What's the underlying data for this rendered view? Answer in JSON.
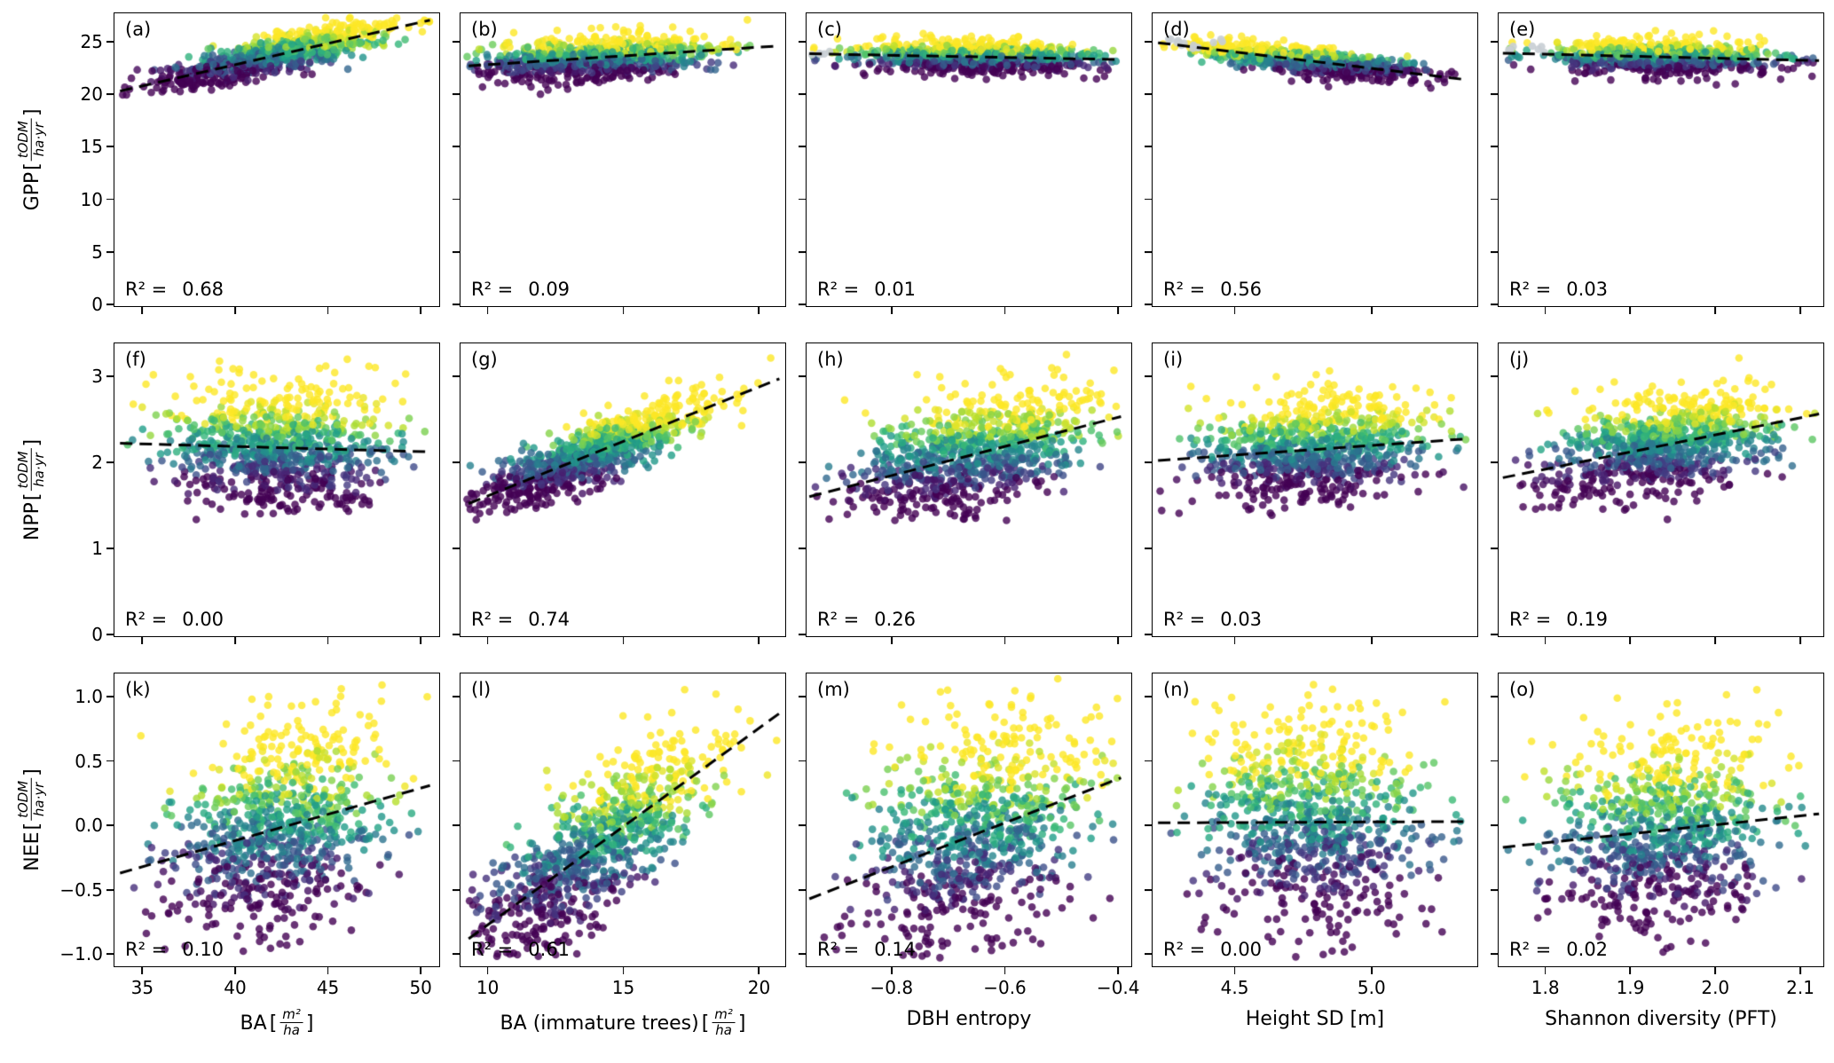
{
  "chart_data": {
    "type": "scatter",
    "layout": "3 rows x 5 columns, shared x per column and shared y per row",
    "colormap": "viridis",
    "point_color_meaning": "viridis-colored response value (low = purple, high = yellow)",
    "points_per_panel": 850,
    "gridlines": false,
    "legend": "none",
    "r2_prefix": "R² =",
    "bracket_open": "[",
    "bracket_close": "]",
    "rows": [
      {
        "name": "GPP",
        "unit_num": "tODM",
        "unit_den": "ha·yr",
        "ylim": [
          0,
          27.7
        ],
        "ytick_vals": [
          0,
          5,
          10,
          15,
          20,
          25
        ],
        "yticks": [
          "0",
          "5",
          "10",
          "15",
          "20",
          "25"
        ],
        "y_clip": [
          19.7,
          27.4
        ],
        "color_noise": 0.5
      },
      {
        "name": "NPP",
        "unit_num": "tODM",
        "unit_den": "ha·yr",
        "ylim": [
          0,
          3.38
        ],
        "ytick_vals": [
          0,
          1,
          2,
          3
        ],
        "yticks": [
          "0",
          "1",
          "2",
          "3"
        ],
        "y_clip": [
          1.32,
          3.33
        ],
        "color_noise": 0.38
      },
      {
        "name": "NEE",
        "unit_num": "tODM",
        "unit_den": "ha·yr",
        "ylim": [
          -1.08,
          1.18
        ],
        "ytick_vals": [
          -1.0,
          -0.5,
          0.0,
          0.5,
          1.0
        ],
        "yticks": [
          "−1.0",
          "−0.5",
          "0.0",
          "0.5",
          "1.0"
        ],
        "y_clip": [
          -1.03,
          1.14
        ],
        "color_noise": 0.45
      }
    ],
    "cols": [
      {
        "name": "BA",
        "unit": "frac",
        "unit_num": "m²",
        "unit_den": "ha",
        "xlim": [
          33.5,
          50.9
        ],
        "xtick_vals": [
          35,
          40,
          45,
          50
        ],
        "xticks": [
          "35",
          "40",
          "45",
          "50"
        ],
        "x_mean": 42.4,
        "x_sd": 3.0
      },
      {
        "name": "BA (immature trees)",
        "unit": "frac",
        "unit_num": "m²",
        "unit_den": "ha",
        "xlim": [
          9.0,
          20.9
        ],
        "xtick_vals": [
          10,
          15,
          20
        ],
        "xticks": [
          "10",
          "15",
          "20"
        ],
        "x_mean": 13.9,
        "x_sd": 2.15
      },
      {
        "name": "DBH entropy",
        "unit": "none",
        "xlim": [
          -0.95,
          -0.38
        ],
        "xtick_vals": [
          -0.8,
          -0.6,
          -0.4
        ],
        "xticks": [
          "−0.8",
          "−0.6",
          "−0.4"
        ],
        "x_mean": -0.655,
        "x_sd": 0.104
      },
      {
        "name": "Height SD [m]",
        "unit": "none",
        "xlim": [
          4.2,
          5.38
        ],
        "xtick_vals": [
          4.5,
          5.0
        ],
        "xticks": [
          "4.5",
          "5.0"
        ],
        "x_mean": 4.78,
        "x_sd": 0.21
      },
      {
        "name": "Shannon diversity (PFT)",
        "unit": "none",
        "xlim": [
          1.745,
          2.125
        ],
        "xtick_vals": [
          1.8,
          1.9,
          2.0,
          2.1
        ],
        "xticks": [
          "1.8",
          "1.9",
          "2.0",
          "2.1"
        ],
        "x_mean": 1.938,
        "x_sd": 0.066
      }
    ],
    "panels": [
      {
        "label": "(a)",
        "r2": "0.68",
        "trend": {
          "x": [
            33.8,
            50.5
          ],
          "y": [
            20.3,
            27.05
          ]
        },
        "resid_sd": 0.85
      },
      {
        "label": "(b)",
        "r2": "0.09",
        "trend": {
          "x": [
            9.3,
            20.75
          ],
          "y": [
            22.7,
            24.6
          ]
        },
        "resid_sd": 1.02
      },
      {
        "label": "(c)",
        "r2": "0.01",
        "trend": {
          "x": [
            -0.945,
            -0.395
          ],
          "y": [
            23.85,
            23.3
          ]
        },
        "resid_sd": 0.78,
        "gray": {
          "n": 5,
          "x": [
            -0.945,
            -0.895
          ],
          "y": [
            23.6,
            24.4
          ]
        }
      },
      {
        "label": "(d)",
        "r2": "0.56",
        "trend": {
          "x": [
            4.22,
            5.34
          ],
          "y": [
            24.9,
            21.4
          ]
        },
        "resid_sd": 0.56,
        "gray": {
          "n": 14,
          "x": [
            4.25,
            4.47
          ],
          "y": [
            24.2,
            25.3
          ]
        }
      },
      {
        "label": "(e)",
        "r2": "0.03",
        "trend": {
          "x": [
            1.75,
            2.122
          ],
          "y": [
            23.9,
            23.2
          ]
        },
        "resid_sd": 0.75,
        "gray": {
          "n": 7,
          "x": [
            1.752,
            1.805
          ],
          "y": [
            23.7,
            24.6
          ]
        }
      },
      {
        "label": "(f)",
        "r2": "0.00",
        "trend": {
          "x": [
            33.8,
            50.5
          ],
          "y": [
            2.22,
            2.12
          ]
        },
        "resid_sd": 0.37
      },
      {
        "label": "(g)",
        "r2": "0.74",
        "trend": {
          "x": [
            9.3,
            20.75
          ],
          "y": [
            1.52,
            2.97
          ]
        },
        "resid_sd": 0.165
      },
      {
        "label": "(h)",
        "r2": "0.26",
        "trend": {
          "x": [
            -0.945,
            -0.395
          ],
          "y": [
            1.6,
            2.53
          ]
        },
        "resid_sd": 0.33
      },
      {
        "label": "(i)",
        "r2": "0.03",
        "trend": {
          "x": [
            4.22,
            5.34
          ],
          "y": [
            2.02,
            2.27
          ]
        },
        "resid_sd": 0.3
      },
      {
        "label": "(j)",
        "r2": "0.19",
        "trend": {
          "x": [
            1.75,
            2.122
          ],
          "y": [
            1.82,
            2.56
          ]
        },
        "resid_sd": 0.28
      },
      {
        "label": "(k)",
        "r2": "0.10",
        "trend": {
          "x": [
            33.8,
            50.5
          ],
          "y": [
            -0.37,
            0.31
          ]
        },
        "resid_sd": 0.38
      },
      {
        "label": "(l)",
        "r2": "0.61",
        "trend": {
          "x": [
            9.3,
            20.75
          ],
          "y": [
            -0.88,
            0.87
          ]
        },
        "resid_sd": 0.27
      },
      {
        "label": "(m)",
        "r2": "0.14",
        "trend": {
          "x": [
            -0.945,
            -0.395
          ],
          "y": [
            -0.57,
            0.37
          ]
        },
        "resid_sd": 0.44
      },
      {
        "label": "(n)",
        "r2": "0.00",
        "trend": {
          "x": [
            4.22,
            5.34
          ],
          "y": [
            0.02,
            0.03
          ]
        },
        "resid_sd": 0.42
      },
      {
        "label": "(o)",
        "r2": "0.02",
        "trend": {
          "x": [
            1.75,
            2.122
          ],
          "y": [
            -0.17,
            0.09
          ]
        },
        "resid_sd": 0.4
      }
    ]
  }
}
